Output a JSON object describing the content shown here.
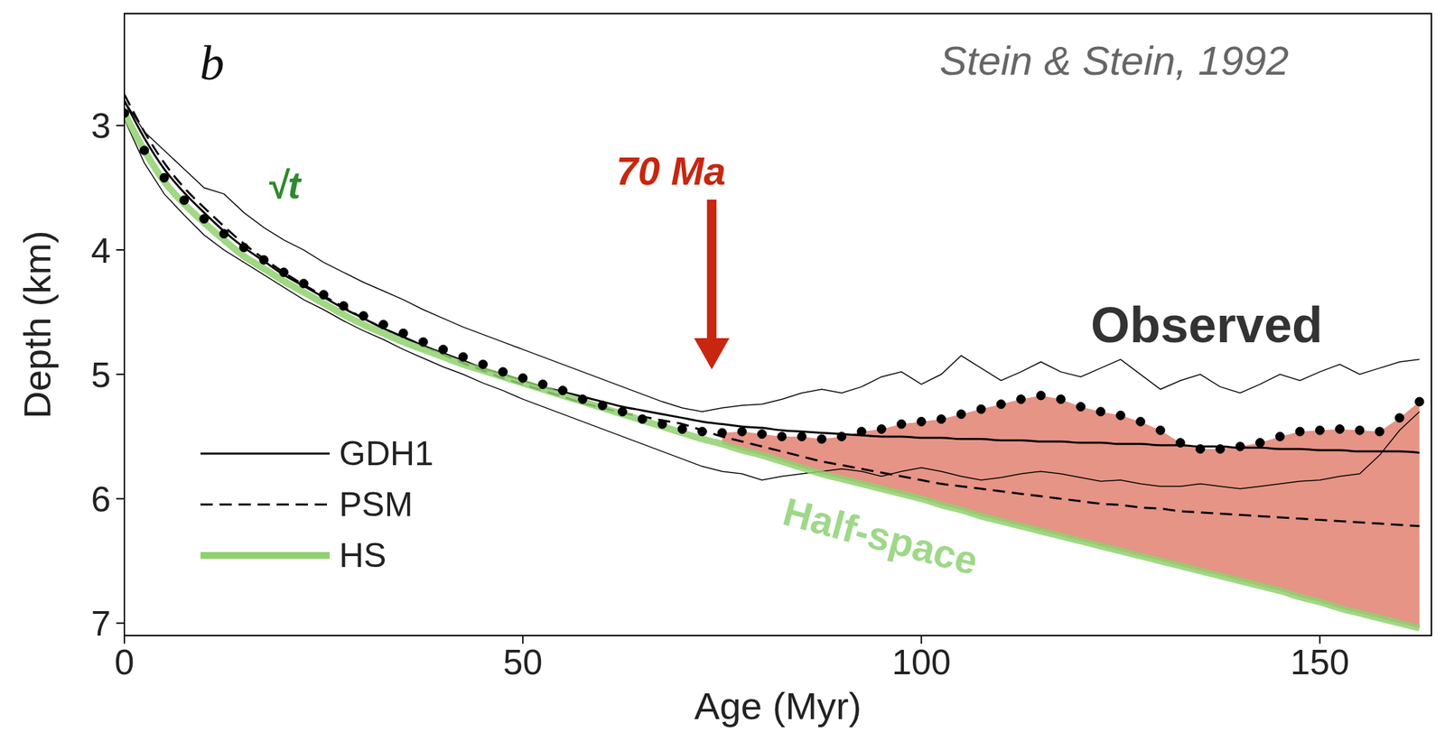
{
  "chart_data": {
    "type": "line",
    "x_label": "Age (Myr)",
    "y_label": "Depth (km)",
    "xlim": [
      0,
      164
    ],
    "xticks": [
      0,
      50,
      100,
      150
    ],
    "ylim": [
      2.1,
      7.1
    ],
    "yticks": [
      3,
      4,
      5,
      6,
      7
    ],
    "grid": false,
    "legend": "lower left",
    "x": [
      0,
      2.5,
      5,
      7.5,
      10,
      12.5,
      15,
      17.5,
      20,
      22.5,
      25,
      27.5,
      30,
      32.5,
      35,
      37.5,
      40,
      42.5,
      45,
      47.5,
      50,
      52.5,
      55,
      57.5,
      60,
      62.5,
      65,
      67.5,
      70,
      72.5,
      75,
      77.5,
      80,
      82.5,
      85,
      87.5,
      90,
      92.5,
      95,
      97.5,
      100,
      102.5,
      105,
      107.5,
      110,
      112.5,
      115,
      117.5,
      120,
      122.5,
      125,
      127.5,
      130,
      132.5,
      135,
      137.5,
      140,
      142.5,
      145,
      147.5,
      150,
      152.5,
      155,
      157.5,
      160,
      162.5
    ],
    "series": [
      {
        "name": "GDH1",
        "color": "#000000",
        "line_style": "solid",
        "values": [
          2.8,
          3.1,
          3.35,
          3.54,
          3.7,
          3.85,
          3.98,
          4.09,
          4.2,
          4.29,
          4.38,
          4.47,
          4.55,
          4.63,
          4.7,
          4.77,
          4.83,
          4.89,
          4.95,
          5.0,
          5.05,
          5.1,
          5.14,
          5.18,
          5.22,
          5.26,
          5.29,
          5.32,
          5.35,
          5.38,
          5.4,
          5.42,
          5.43,
          5.45,
          5.46,
          5.47,
          5.48,
          5.49,
          5.5,
          5.5,
          5.51,
          5.51,
          5.52,
          5.52,
          5.53,
          5.53,
          5.54,
          5.54,
          5.55,
          5.55,
          5.56,
          5.56,
          5.57,
          5.57,
          5.58,
          5.58,
          5.59,
          5.59,
          5.6,
          5.6,
          5.61,
          5.61,
          5.62,
          5.62,
          5.62,
          5.63
        ]
      },
      {
        "name": "PSM",
        "color": "#000000",
        "line_style": "dashed",
        "values": [
          2.75,
          3.05,
          3.3,
          3.5,
          3.66,
          3.81,
          3.95,
          4.07,
          4.18,
          4.28,
          4.37,
          4.46,
          4.55,
          4.63,
          4.7,
          4.77,
          4.84,
          4.91,
          4.97,
          5.03,
          5.08,
          5.13,
          5.18,
          5.23,
          5.27,
          5.31,
          5.34,
          5.37,
          5.4,
          5.45,
          5.5,
          5.54,
          5.58,
          5.62,
          5.66,
          5.7,
          5.73,
          5.76,
          5.79,
          5.82,
          5.85,
          5.88,
          5.9,
          5.92,
          5.94,
          5.96,
          5.98,
          6.0,
          6.02,
          6.04,
          6.05,
          6.07,
          6.08,
          6.1,
          6.11,
          6.12,
          6.13,
          6.14,
          6.15,
          6.16,
          6.17,
          6.18,
          6.19,
          6.2,
          6.21,
          6.22
        ]
      },
      {
        "name": "HS",
        "color": "#8fd16f",
        "line_style": "solid",
        "values": [
          2.9,
          3.2,
          3.45,
          3.63,
          3.78,
          3.92,
          4.05,
          4.15,
          4.25,
          4.34,
          4.43,
          4.52,
          4.6,
          4.67,
          4.74,
          4.8,
          4.86,
          4.92,
          4.97,
          5.02,
          5.07,
          5.12,
          5.17,
          5.22,
          5.27,
          5.32,
          5.37,
          5.42,
          5.47,
          5.52,
          5.56,
          5.61,
          5.65,
          5.7,
          5.75,
          5.8,
          5.84,
          5.88,
          5.92,
          5.96,
          6.0,
          6.05,
          6.09,
          6.14,
          6.18,
          6.22,
          6.26,
          6.3,
          6.34,
          6.38,
          6.42,
          6.46,
          6.5,
          6.54,
          6.58,
          6.62,
          6.66,
          6.7,
          6.74,
          6.79,
          6.83,
          6.88,
          6.92,
          6.96,
          7.0,
          7.04
        ]
      }
    ],
    "observed": {
      "name": "Observed",
      "color": "#000000",
      "marker": "circle",
      "values": [
        2.9,
        3.2,
        3.42,
        3.6,
        3.75,
        3.87,
        3.98,
        4.08,
        4.18,
        4.27,
        4.36,
        4.45,
        4.53,
        4.6,
        4.67,
        4.74,
        4.8,
        4.86,
        4.92,
        4.98,
        5.03,
        5.08,
        5.13,
        5.2,
        5.25,
        5.3,
        5.36,
        5.4,
        5.44,
        5.46,
        5.47,
        5.46,
        5.48,
        5.5,
        5.5,
        5.52,
        5.5,
        5.46,
        5.44,
        5.4,
        5.38,
        5.36,
        5.32,
        5.28,
        5.24,
        5.2,
        5.17,
        5.2,
        5.26,
        5.3,
        5.33,
        5.38,
        5.45,
        5.55,
        5.6,
        5.6,
        5.58,
        5.55,
        5.5,
        5.46,
        5.45,
        5.44,
        5.45,
        5.46,
        5.35,
        5.22
      ],
      "upper": [
        2.8,
        3.05,
        3.2,
        3.35,
        3.5,
        3.55,
        3.7,
        3.82,
        3.92,
        4.0,
        4.1,
        4.18,
        4.26,
        4.33,
        4.4,
        4.48,
        4.55,
        4.62,
        4.68,
        4.74,
        4.8,
        4.86,
        4.92,
        4.98,
        5.04,
        5.1,
        5.16,
        5.22,
        5.27,
        5.3,
        5.27,
        5.25,
        5.24,
        5.2,
        5.15,
        5.12,
        5.15,
        5.1,
        5.02,
        4.98,
        5.08,
        5.0,
        4.85,
        4.95,
        5.05,
        4.98,
        4.9,
        4.98,
        5.02,
        4.95,
        4.88,
        5.0,
        5.12,
        5.05,
        5.0,
        5.1,
        5.15,
        5.08,
        5.0,
        5.05,
        4.98,
        4.92,
        5.0,
        4.95,
        4.9,
        4.88
      ],
      "lower": [
        2.95,
        3.3,
        3.55,
        3.72,
        3.88,
        4.0,
        4.1,
        4.2,
        4.3,
        4.4,
        4.48,
        4.57,
        4.65,
        4.72,
        4.8,
        4.87,
        4.94,
        5.0,
        5.07,
        5.13,
        5.2,
        5.26,
        5.32,
        5.38,
        5.44,
        5.5,
        5.56,
        5.62,
        5.68,
        5.74,
        5.78,
        5.8,
        5.85,
        5.82,
        5.8,
        5.78,
        5.76,
        5.78,
        5.82,
        5.78,
        5.75,
        5.78,
        5.82,
        5.85,
        5.83,
        5.8,
        5.78,
        5.8,
        5.83,
        5.86,
        5.85,
        5.88,
        5.9,
        5.9,
        5.88,
        5.9,
        5.92,
        5.9,
        5.88,
        5.86,
        5.85,
        5.82,
        5.8,
        5.65,
        5.45,
        5.3
      ]
    },
    "shaded": {
      "between": [
        "HS",
        "Observed"
      ],
      "from": 75,
      "color": "#e59486"
    },
    "annotations": [
      {
        "text": "b",
        "x": 11,
        "y": 2.5,
        "color": "#111111"
      },
      {
        "text": "Stein & Stein, 1992",
        "x": 124.2,
        "y": 2.48,
        "color": "#666666"
      },
      {
        "text": "√t",
        "x": 20,
        "y": 3.48,
        "color": "#2e8b2e"
      },
      {
        "text": "70 Ma",
        "x": 73.7,
        "y": 4.96,
        "color": "#c8260f",
        "marker": "arrow"
      },
      {
        "text": "Observed",
        "x": 135.8,
        "y": 4.6,
        "color": "#333333"
      },
      {
        "text": "Half-space",
        "x": 94.9,
        "y": 6.3,
        "color": "#9fd88a"
      }
    ]
  }
}
